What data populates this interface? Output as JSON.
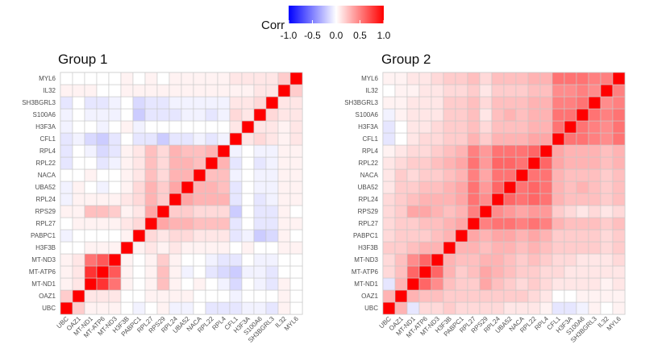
{
  "legend": {
    "title": "Corr",
    "ticks": [
      "-1.0",
      "-0.5",
      "0.0",
      "0.5",
      "1.0"
    ],
    "tick_values": [
      -1.0,
      -0.5,
      0.0,
      0.5,
      1.0
    ],
    "colors": {
      "low": "#0000ff",
      "mid": "#ffffff",
      "high": "#ff0000"
    }
  },
  "chart_data": [
    {
      "type": "heatmap",
      "title": "Group 1",
      "xlabel": "",
      "ylabel": "",
      "zlim": [
        -1,
        1
      ],
      "genes": [
        "UBC",
        "OAZ1",
        "MT-ND1",
        "MT-ATP6",
        "MT-ND3",
        "H3F3B",
        "PABPC1",
        "RPL27",
        "RPS29",
        "RPL24",
        "UBA52",
        "NACA",
        "RPL22",
        "RPL4",
        "CFL1",
        "H3F3A",
        "S100A6",
        "SH3BGRL3",
        "IL32",
        "MYL6"
      ],
      "x_tick_labels": [
        "UBC",
        "OAZ1",
        "MT-ND1",
        "MT-ATP6",
        "MT-ND3",
        "H3F3B",
        "PABPC1",
        "RPL27",
        "RPS29",
        "RPL24",
        "UBA52",
        "NACA",
        "RPL22",
        "RPL4",
        "CFL1",
        "H3F3A",
        "S100A6",
        "SH3BGRL3",
        "IL32",
        "MYL6"
      ],
      "y_tick_labels": [
        "UBC",
        "OAZ1",
        "MT-ND1",
        "MT-ATP6",
        "MT-ND3",
        "H3F3B",
        "PABPC1",
        "RPL27",
        "RPS29",
        "RPL24",
        "UBA52",
        "NACA",
        "RPL22",
        "RPL4",
        "CFL1",
        "H3F3A",
        "S100A6",
        "SH3BGRL3",
        "IL32",
        "MYL6"
      ],
      "matrix": [
        [
          1.0,
          0.2,
          0.05,
          0.05,
          0.05,
          0.0,
          -0.05,
          0.0,
          0.05,
          -0.05,
          -0.05,
          0.0,
          -0.1,
          -0.1,
          -0.1,
          -0.05,
          -0.05,
          -0.1,
          0.05,
          0.0
        ],
        [
          0.2,
          1.0,
          0.1,
          0.1,
          0.1,
          0.0,
          0.0,
          0.05,
          0.05,
          0.05,
          0.05,
          0.0,
          0.0,
          0.0,
          -0.05,
          0.0,
          0.0,
          0.0,
          0.05,
          0.0
        ],
        [
          0.05,
          0.1,
          1.0,
          0.8,
          0.55,
          0.05,
          0.0,
          0.05,
          0.25,
          0.05,
          0.0,
          0.05,
          0.0,
          -0.05,
          -0.15,
          0.0,
          -0.05,
          -0.1,
          0.05,
          0.0
        ],
        [
          0.05,
          0.1,
          0.8,
          1.0,
          0.65,
          0.05,
          0.0,
          0.05,
          0.25,
          0.05,
          -0.05,
          0.0,
          -0.1,
          -0.15,
          -0.2,
          -0.05,
          -0.05,
          -0.1,
          0.0,
          0.0
        ],
        [
          0.05,
          0.1,
          0.55,
          0.65,
          1.0,
          0.05,
          0.0,
          0.05,
          0.2,
          0.05,
          0.0,
          0.0,
          -0.05,
          -0.1,
          -0.1,
          0.0,
          -0.05,
          -0.05,
          0.0,
          0.0
        ],
        [
          0.0,
          0.0,
          0.05,
          0.05,
          0.05,
          1.0,
          0.05,
          0.1,
          0.05,
          0.1,
          0.05,
          0.05,
          0.05,
          0.05,
          0.0,
          0.05,
          0.0,
          0.0,
          0.05,
          0.05
        ],
        [
          -0.05,
          0.0,
          0.0,
          0.0,
          0.0,
          0.05,
          1.0,
          0.15,
          0.1,
          0.15,
          0.15,
          0.1,
          0.1,
          0.1,
          -0.1,
          -0.05,
          -0.2,
          -0.15,
          0.05,
          0.0
        ],
        [
          0.0,
          0.05,
          0.05,
          0.05,
          0.05,
          0.1,
          0.15,
          1.0,
          0.35,
          0.3,
          0.3,
          0.25,
          0.25,
          0.25,
          -0.1,
          0.0,
          -0.1,
          -0.1,
          0.05,
          0.05
        ],
        [
          0.05,
          0.05,
          0.25,
          0.25,
          0.2,
          0.05,
          0.1,
          0.35,
          1.0,
          0.2,
          0.2,
          0.15,
          0.15,
          0.15,
          -0.2,
          0.0,
          -0.1,
          -0.1,
          0.05,
          0.0
        ],
        [
          -0.05,
          0.05,
          0.05,
          0.05,
          0.05,
          0.1,
          0.15,
          0.3,
          0.2,
          1.0,
          0.35,
          0.3,
          0.3,
          0.3,
          -0.1,
          0.0,
          -0.1,
          -0.05,
          0.05,
          0.05
        ],
        [
          -0.05,
          0.05,
          0.0,
          -0.05,
          0.0,
          0.05,
          0.15,
          0.3,
          0.2,
          0.35,
          1.0,
          0.3,
          0.3,
          0.25,
          -0.1,
          0.0,
          -0.05,
          -0.05,
          0.05,
          0.05
        ],
        [
          0.0,
          0.0,
          0.05,
          0.0,
          0.0,
          0.05,
          0.1,
          0.25,
          0.15,
          0.3,
          0.3,
          1.0,
          0.25,
          0.25,
          -0.05,
          0.0,
          -0.05,
          -0.05,
          0.05,
          0.05
        ],
        [
          -0.1,
          0.0,
          0.0,
          -0.1,
          -0.05,
          0.05,
          0.1,
          0.25,
          0.15,
          0.3,
          0.3,
          0.25,
          1.0,
          0.3,
          -0.1,
          0.0,
          -0.1,
          -0.05,
          0.05,
          0.05
        ],
        [
          -0.1,
          0.0,
          -0.05,
          -0.15,
          -0.1,
          0.05,
          0.1,
          0.25,
          0.15,
          0.3,
          0.25,
          0.25,
          0.3,
          1.0,
          -0.05,
          0.0,
          -0.05,
          -0.05,
          0.05,
          0.05
        ],
        [
          -0.1,
          -0.05,
          -0.15,
          -0.2,
          -0.1,
          0.0,
          -0.1,
          -0.1,
          -0.2,
          -0.1,
          -0.1,
          -0.05,
          -0.1,
          -0.05,
          1.0,
          0.1,
          0.15,
          0.1,
          0.05,
          0.1
        ],
        [
          -0.05,
          0.0,
          0.0,
          -0.05,
          0.0,
          0.05,
          -0.05,
          0.0,
          0.0,
          0.0,
          0.0,
          0.0,
          0.0,
          0.0,
          0.1,
          1.0,
          0.1,
          0.1,
          0.05,
          0.1
        ],
        [
          -0.05,
          0.0,
          -0.05,
          -0.05,
          -0.05,
          0.0,
          -0.2,
          -0.1,
          -0.1,
          -0.1,
          -0.05,
          -0.05,
          -0.1,
          -0.05,
          0.15,
          0.1,
          1.0,
          0.15,
          0.1,
          0.1
        ],
        [
          -0.1,
          0.0,
          -0.1,
          -0.1,
          -0.05,
          0.0,
          -0.15,
          -0.1,
          -0.1,
          -0.05,
          -0.05,
          -0.05,
          -0.05,
          -0.05,
          0.1,
          0.1,
          0.15,
          1.0,
          0.1,
          0.1
        ],
        [
          0.05,
          0.05,
          0.05,
          0.0,
          0.0,
          0.05,
          0.05,
          0.05,
          0.05,
          0.05,
          0.05,
          0.05,
          0.05,
          0.05,
          0.05,
          0.05,
          0.1,
          0.1,
          1.0,
          0.2
        ],
        [
          0.0,
          0.0,
          0.0,
          0.0,
          0.0,
          0.05,
          0.0,
          0.05,
          0.0,
          0.05,
          0.05,
          0.05,
          0.05,
          0.05,
          0.1,
          0.1,
          0.1,
          0.1,
          0.2,
          1.0
        ]
      ]
    },
    {
      "type": "heatmap",
      "title": "Group 2",
      "xlabel": "",
      "ylabel": "",
      "zlim": [
        -1,
        1
      ],
      "genes": [
        "UBC",
        "OAZ1",
        "MT-ND1",
        "MT-ATP6",
        "MT-ND3",
        "H3F3B",
        "PABPC1",
        "RPL27",
        "RPS29",
        "RPL24",
        "UBA52",
        "NACA",
        "RPL22",
        "RPL4",
        "CFL1",
        "H3F3A",
        "S100A6",
        "SH3BGRL3",
        "IL32",
        "MYL6"
      ],
      "x_tick_labels": [
        "UBC",
        "OAZ1",
        "MT-ND1",
        "MT-ATP6",
        "MT-ND3",
        "H3F3B",
        "PABPC1",
        "RPL27",
        "RPS29",
        "RPL24",
        "UBA52",
        "NACA",
        "RPL22",
        "RPL4",
        "CFL1",
        "H3F3A",
        "S100A6",
        "SH3BGRL3",
        "IL32",
        "MYL6"
      ],
      "y_tick_labels": [
        "UBC",
        "OAZ1",
        "MT-ND1",
        "MT-ATP6",
        "MT-ND3",
        "H3F3B",
        "PABPC1",
        "RPL27",
        "RPS29",
        "RPL24",
        "UBA52",
        "NACA",
        "RPL22",
        "RPL4",
        "CFL1",
        "H3F3A",
        "S100A6",
        "SH3BGRL3",
        "IL32",
        "MYL6"
      ],
      "matrix": [
        [
          1.0,
          0.3,
          -0.1,
          0.15,
          0.15,
          0.2,
          0.15,
          0.15,
          0.15,
          0.15,
          0.1,
          0.1,
          0.1,
          0.05,
          -0.1,
          -0.1,
          -0.05,
          0.05,
          0.0,
          0.05
        ],
        [
          0.3,
          1.0,
          0.3,
          0.25,
          0.25,
          0.2,
          0.2,
          0.2,
          0.2,
          0.2,
          0.2,
          0.2,
          0.15,
          0.1,
          0.0,
          0.0,
          0.05,
          0.05,
          0.05,
          0.05
        ],
        [
          -0.1,
          0.3,
          1.0,
          0.6,
          0.45,
          0.25,
          0.2,
          0.2,
          0.35,
          0.25,
          0.2,
          0.15,
          0.2,
          0.15,
          0.1,
          0.1,
          0.1,
          0.1,
          0.05,
          0.1
        ],
        [
          0.15,
          0.25,
          0.6,
          1.0,
          0.6,
          0.3,
          0.2,
          0.25,
          0.35,
          0.3,
          0.25,
          0.2,
          0.2,
          0.15,
          0.15,
          0.1,
          0.1,
          0.1,
          0.1,
          0.1
        ],
        [
          0.15,
          0.25,
          0.45,
          0.6,
          1.0,
          0.3,
          0.25,
          0.25,
          0.3,
          0.3,
          0.25,
          0.2,
          0.25,
          0.2,
          0.15,
          0.15,
          0.1,
          0.1,
          0.1,
          0.15
        ],
        [
          0.2,
          0.2,
          0.25,
          0.3,
          0.3,
          1.0,
          0.3,
          0.3,
          0.25,
          0.3,
          0.3,
          0.25,
          0.3,
          0.25,
          0.2,
          0.2,
          0.2,
          0.2,
          0.15,
          0.2
        ],
        [
          0.15,
          0.2,
          0.2,
          0.2,
          0.25,
          0.3,
          1.0,
          0.35,
          0.3,
          0.35,
          0.35,
          0.3,
          0.35,
          0.3,
          0.2,
          0.2,
          0.2,
          0.2,
          0.15,
          0.2
        ],
        [
          0.15,
          0.2,
          0.2,
          0.25,
          0.25,
          0.3,
          0.35,
          1.0,
          0.5,
          0.55,
          0.55,
          0.5,
          0.55,
          0.5,
          0.3,
          0.25,
          0.25,
          0.25,
          0.2,
          0.25
        ],
        [
          0.15,
          0.2,
          0.35,
          0.35,
          0.3,
          0.25,
          0.3,
          0.5,
          1.0,
          0.45,
          0.4,
          0.35,
          0.4,
          0.4,
          0.2,
          0.15,
          0.1,
          0.15,
          0.1,
          0.15
        ],
        [
          0.15,
          0.2,
          0.25,
          0.3,
          0.3,
          0.3,
          0.35,
          0.55,
          0.45,
          1.0,
          0.6,
          0.55,
          0.6,
          0.55,
          0.3,
          0.25,
          0.25,
          0.25,
          0.2,
          0.25
        ],
        [
          0.1,
          0.2,
          0.2,
          0.25,
          0.25,
          0.3,
          0.35,
          0.55,
          0.4,
          0.6,
          1.0,
          0.55,
          0.6,
          0.55,
          0.3,
          0.25,
          0.3,
          0.25,
          0.2,
          0.25
        ],
        [
          0.1,
          0.2,
          0.15,
          0.2,
          0.2,
          0.25,
          0.3,
          0.5,
          0.35,
          0.55,
          0.55,
          1.0,
          0.55,
          0.55,
          0.3,
          0.25,
          0.25,
          0.25,
          0.2,
          0.25
        ],
        [
          0.1,
          0.15,
          0.2,
          0.2,
          0.25,
          0.3,
          0.35,
          0.55,
          0.4,
          0.6,
          0.6,
          0.55,
          1.0,
          0.6,
          0.35,
          0.3,
          0.3,
          0.3,
          0.25,
          0.3
        ],
        [
          0.05,
          0.1,
          0.15,
          0.15,
          0.2,
          0.25,
          0.3,
          0.5,
          0.4,
          0.55,
          0.55,
          0.55,
          0.6,
          1.0,
          0.35,
          0.3,
          0.3,
          0.3,
          0.25,
          0.3
        ],
        [
          -0.1,
          0.0,
          0.1,
          0.15,
          0.15,
          0.2,
          0.2,
          0.3,
          0.2,
          0.3,
          0.3,
          0.3,
          0.35,
          0.35,
          1.0,
          0.55,
          0.55,
          0.5,
          0.45,
          0.55
        ],
        [
          -0.1,
          0.0,
          0.1,
          0.1,
          0.15,
          0.2,
          0.2,
          0.25,
          0.15,
          0.25,
          0.25,
          0.25,
          0.3,
          0.3,
          0.55,
          1.0,
          0.55,
          0.5,
          0.45,
          0.55
        ],
        [
          -0.05,
          0.05,
          0.1,
          0.1,
          0.1,
          0.2,
          0.2,
          0.25,
          0.1,
          0.25,
          0.3,
          0.25,
          0.3,
          0.3,
          0.55,
          0.55,
          1.0,
          0.55,
          0.5,
          0.55
        ],
        [
          0.05,
          0.05,
          0.1,
          0.1,
          0.1,
          0.2,
          0.2,
          0.25,
          0.15,
          0.25,
          0.25,
          0.25,
          0.3,
          0.3,
          0.5,
          0.5,
          0.55,
          1.0,
          0.45,
          0.5
        ],
        [
          0.0,
          0.05,
          0.05,
          0.1,
          0.1,
          0.15,
          0.15,
          0.2,
          0.1,
          0.2,
          0.2,
          0.2,
          0.25,
          0.25,
          0.45,
          0.45,
          0.5,
          0.45,
          1.0,
          0.5
        ],
        [
          0.05,
          0.05,
          0.1,
          0.1,
          0.15,
          0.2,
          0.2,
          0.25,
          0.15,
          0.25,
          0.25,
          0.25,
          0.3,
          0.3,
          0.55,
          0.55,
          0.55,
          0.5,
          0.5,
          1.0
        ]
      ]
    }
  ]
}
